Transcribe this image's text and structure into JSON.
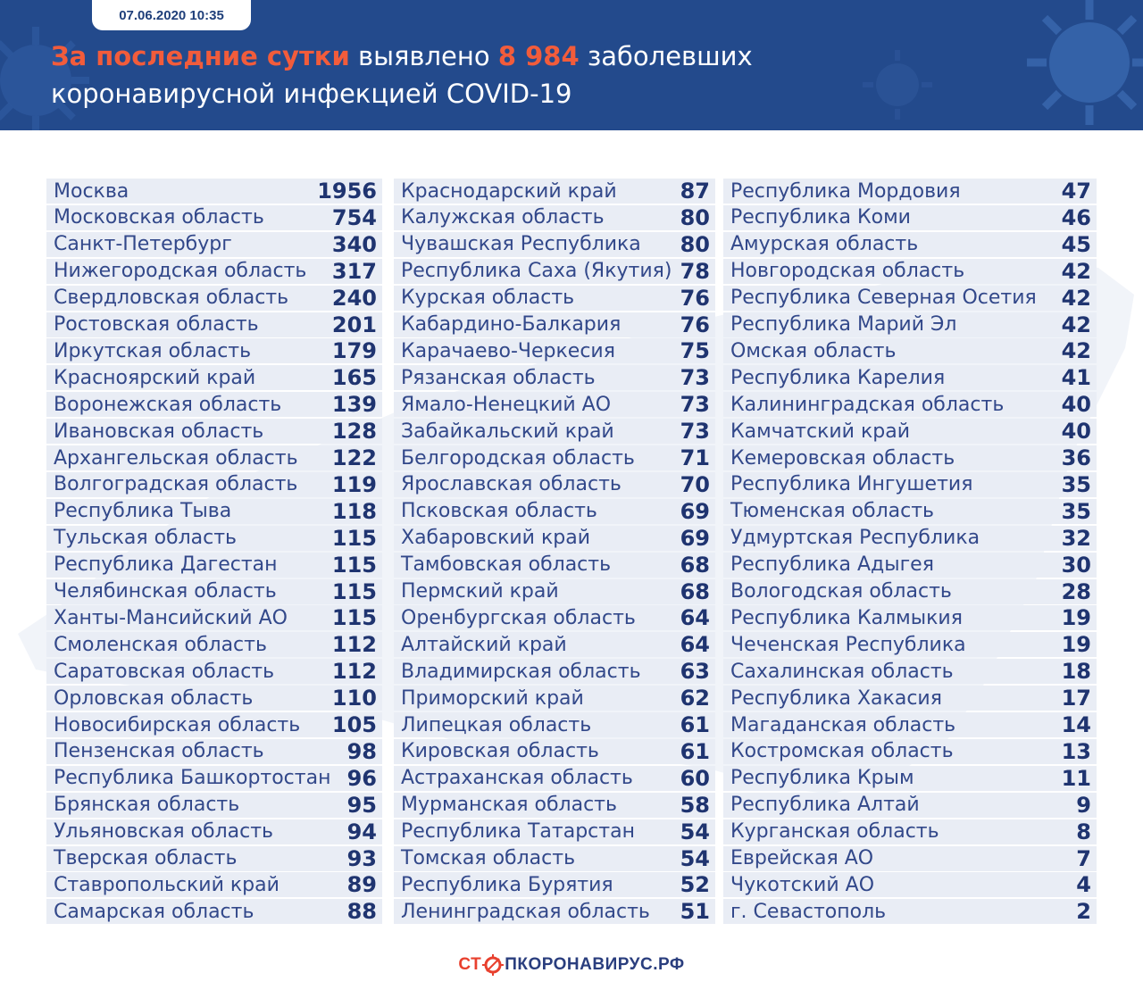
{
  "header": {
    "date": "07.06.2020 10:35",
    "headline_part1": "За последние сутки",
    "headline_part2": " выявлено ",
    "headline_count": "8 984",
    "headline_part3": " заболевших",
    "headline_line2": "коронавирусной инфекцией COVID-19"
  },
  "colors": {
    "header_bg": "#234a8c",
    "accent": "#f25c3b",
    "row_bg": "#e9edf5",
    "text": "#32488a"
  },
  "columns": [
    [
      {
        "name": "Москва",
        "value": "1956"
      },
      {
        "name": "Московская область",
        "value": "754"
      },
      {
        "name": "Санкт-Петербург",
        "value": "340"
      },
      {
        "name": "Нижегородская область",
        "value": "317"
      },
      {
        "name": "Свердловская область",
        "value": "240"
      },
      {
        "name": "Ростовская область",
        "value": "201"
      },
      {
        "name": "Иркутская область",
        "value": "179"
      },
      {
        "name": "Красноярский край",
        "value": "165"
      },
      {
        "name": "Воронежская область",
        "value": "139"
      },
      {
        "name": "Ивановская область",
        "value": "128"
      },
      {
        "name": "Архангельская область",
        "value": "122"
      },
      {
        "name": "Волгоградская область",
        "value": "119"
      },
      {
        "name": "Республика Тыва",
        "value": "118"
      },
      {
        "name": "Тульская область",
        "value": "115"
      },
      {
        "name": "Республика Дагестан",
        "value": "115"
      },
      {
        "name": "Челябинская область",
        "value": "115"
      },
      {
        "name": "Ханты-Мансийский АО",
        "value": "115"
      },
      {
        "name": "Смоленская область",
        "value": "112"
      },
      {
        "name": "Саратовская область",
        "value": "112"
      },
      {
        "name": "Орловская область",
        "value": "110"
      },
      {
        "name": "Новосибирская область",
        "value": "105"
      },
      {
        "name": "Пензенская область",
        "value": "98"
      },
      {
        "name": "Республика Башкортостан",
        "value": "96"
      },
      {
        "name": "Брянская область",
        "value": "95"
      },
      {
        "name": "Ульяновская область",
        "value": "94"
      },
      {
        "name": "Тверская область",
        "value": "93"
      },
      {
        "name": "Ставропольский край",
        "value": "89"
      },
      {
        "name": "Самарская область",
        "value": "88"
      }
    ],
    [
      {
        "name": "Краснодарский край",
        "value": "87"
      },
      {
        "name": "Калужская область",
        "value": "80"
      },
      {
        "name": "Чувашская Республика",
        "value": "80"
      },
      {
        "name": "Республика Саха (Якутия)",
        "value": "78"
      },
      {
        "name": "Курская область",
        "value": "76"
      },
      {
        "name": "Кабардино-Балкария",
        "value": "76"
      },
      {
        "name": "Карачаево-Черкесия",
        "value": "75"
      },
      {
        "name": "Рязанская область",
        "value": "73"
      },
      {
        "name": "Ямало-Ненецкий АО",
        "value": "73"
      },
      {
        "name": "Забайкальский край",
        "value": "73"
      },
      {
        "name": "Белгородская область",
        "value": "71"
      },
      {
        "name": "Ярославская область",
        "value": "70"
      },
      {
        "name": "Псковская область",
        "value": "69"
      },
      {
        "name": "Хабаровский край",
        "value": "69"
      },
      {
        "name": "Тамбовская область",
        "value": "68"
      },
      {
        "name": "Пермский край",
        "value": "68"
      },
      {
        "name": "Оренбургская область",
        "value": "64"
      },
      {
        "name": "Алтайский край",
        "value": "64"
      },
      {
        "name": "Владимирская область",
        "value": "63"
      },
      {
        "name": "Приморский край",
        "value": "62"
      },
      {
        "name": "Липецкая область",
        "value": "61"
      },
      {
        "name": "Кировская область",
        "value": "61"
      },
      {
        "name": "Астраханская область",
        "value": "60"
      },
      {
        "name": "Мурманская область",
        "value": "58"
      },
      {
        "name": "Республика Татарстан",
        "value": "54"
      },
      {
        "name": "Томская область",
        "value": "54"
      },
      {
        "name": "Республика Бурятия",
        "value": "52"
      },
      {
        "name": "Ленинградская область",
        "value": "51"
      }
    ],
    [
      {
        "name": "Республика Мордовия",
        "value": "47"
      },
      {
        "name": "Республика Коми",
        "value": "46"
      },
      {
        "name": "Амурская область",
        "value": "45"
      },
      {
        "name": "Новгородская область",
        "value": "42"
      },
      {
        "name": "Республика Северная Осетия",
        "value": "42"
      },
      {
        "name": "Республика Марий Эл",
        "value": "42"
      },
      {
        "name": "Омская область",
        "value": "42"
      },
      {
        "name": "Республика Карелия",
        "value": "41"
      },
      {
        "name": "Калининградская область",
        "value": "40"
      },
      {
        "name": "Камчатский край",
        "value": "40"
      },
      {
        "name": "Кемеровская область",
        "value": "36"
      },
      {
        "name": "Республика Ингушетия",
        "value": "35"
      },
      {
        "name": "Тюменская область",
        "value": "35"
      },
      {
        "name": "Удмуртская Республика",
        "value": "32"
      },
      {
        "name": "Республика Адыгея",
        "value": "30"
      },
      {
        "name": "Вологодская область",
        "value": "28"
      },
      {
        "name": "Республика Калмыкия",
        "value": "19"
      },
      {
        "name": "Чеченская Республика",
        "value": "19"
      },
      {
        "name": "Сахалинская область",
        "value": "18"
      },
      {
        "name": "Республика Хакасия",
        "value": "17"
      },
      {
        "name": "Магаданская область",
        "value": "14"
      },
      {
        "name": "Костромская область",
        "value": "13"
      },
      {
        "name": "Республика Крым",
        "value": "11"
      },
      {
        "name": "Республика Алтай",
        "value": "9"
      },
      {
        "name": "Курганская область",
        "value": "8"
      },
      {
        "name": "Еврейская АО",
        "value": "7"
      },
      {
        "name": "Чукотский АО",
        "value": "4"
      },
      {
        "name": "г. Севастополь",
        "value": "2"
      }
    ]
  ],
  "footer": {
    "logo_prefix": "СТ",
    "logo_suffix": "ПКОРОНАВИРУС.РФ"
  }
}
